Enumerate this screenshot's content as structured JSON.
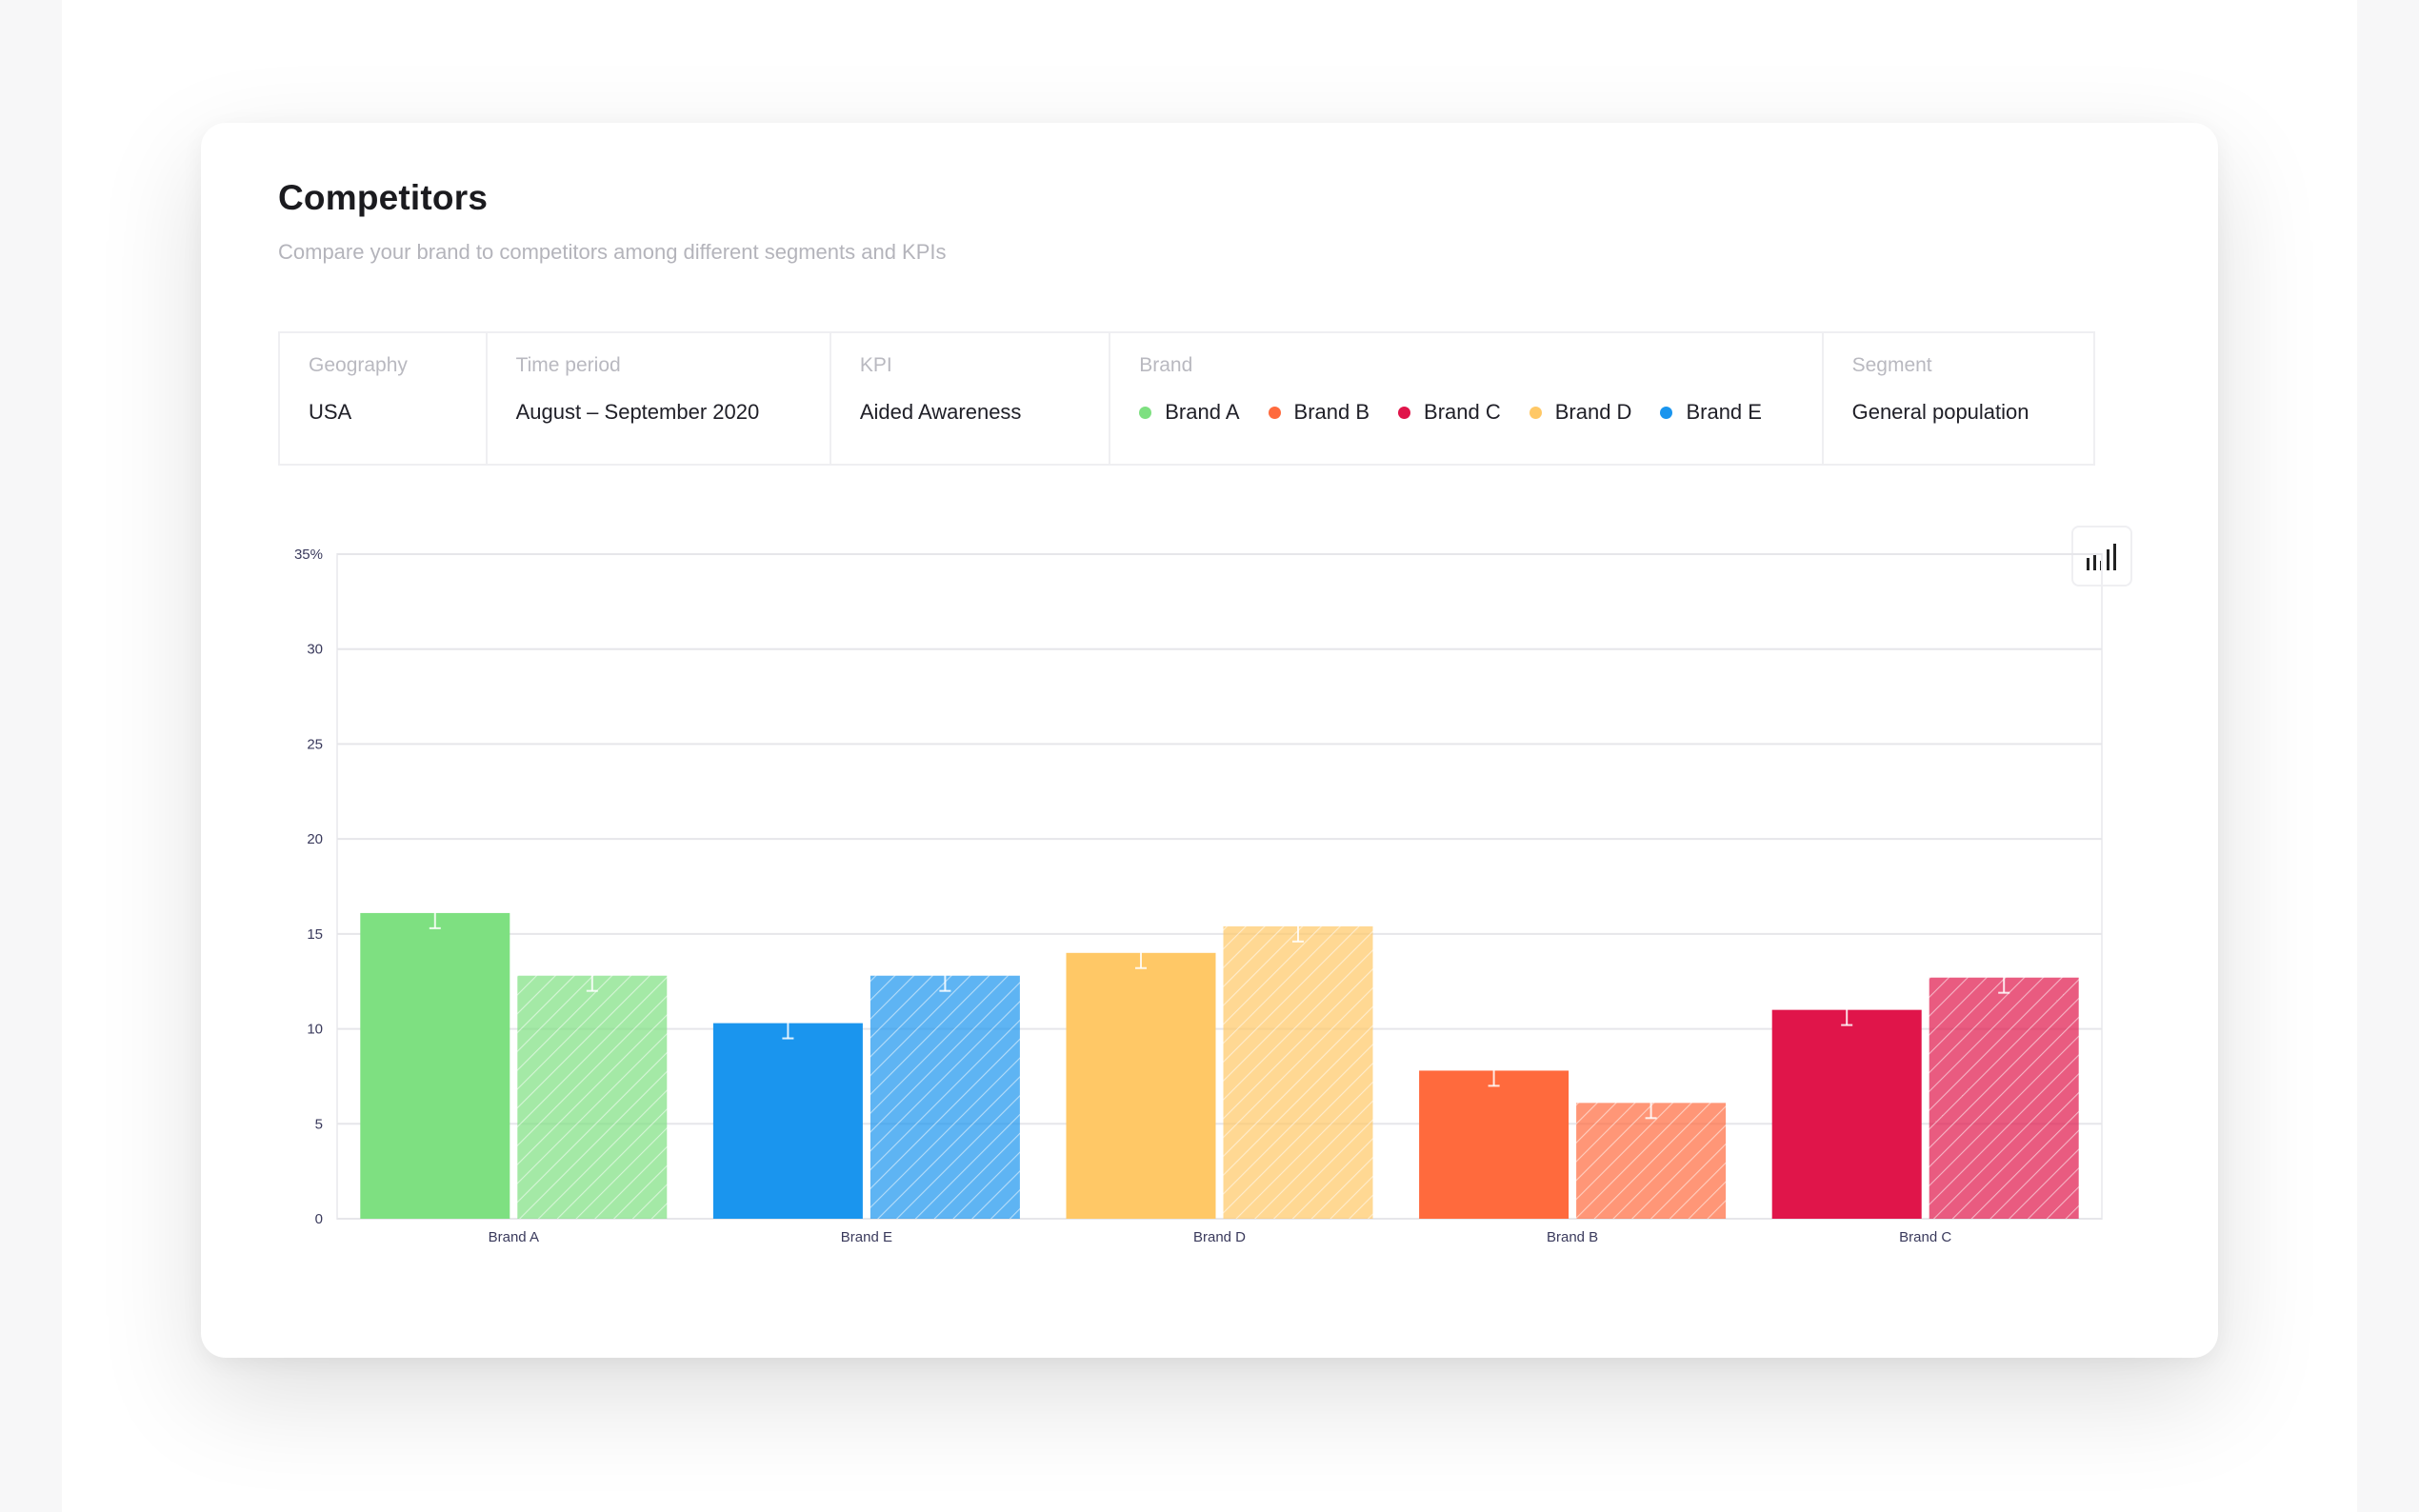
{
  "header": {
    "title": "Competitors",
    "subtitle": "Compare your brand to competitors among different segments and KPIs"
  },
  "filters": {
    "geography": {
      "label": "Geography",
      "value": "USA"
    },
    "time_period": {
      "label": "Time period",
      "value": "August – September 2020"
    },
    "kpi": {
      "label": "KPI",
      "value": "Aided Awareness"
    },
    "brand": {
      "label": "Brand",
      "items": [
        {
          "name": "Brand A",
          "color": "#7ee081"
        },
        {
          "name": "Brand B",
          "color": "#ff6a3d"
        },
        {
          "name": "Brand C",
          "color": "#e0154a"
        },
        {
          "name": "Brand D",
          "color": "#ffc866"
        },
        {
          "name": "Brand E",
          "color": "#1a95ee"
        }
      ]
    },
    "segment": {
      "label": "Segment",
      "value": "General population"
    }
  },
  "toolbar": {
    "chart_type_icon": "bar-chart-icon"
  },
  "chart_data": {
    "type": "bar",
    "categories": [
      "Brand A",
      "Brand E",
      "Brand D",
      "Brand B",
      "Brand C"
    ],
    "colors": [
      "#7ee081",
      "#1a95ee",
      "#ffc866",
      "#ff6a3d",
      "#e0154a"
    ],
    "series": [
      {
        "style": "solid",
        "values": [
          16.1,
          10.3,
          14.0,
          7.8,
          11.0
        ],
        "error": [
          0.8,
          0.8,
          0.8,
          0.8,
          0.8
        ]
      },
      {
        "style": "hatched",
        "values": [
          12.8,
          12.8,
          15.4,
          6.1,
          12.7
        ],
        "error": [
          0.8,
          0.8,
          0.8,
          0.8,
          0.8
        ]
      }
    ],
    "yticks": [
      "0",
      "5",
      "10",
      "15",
      "20",
      "25",
      "30",
      "35%"
    ],
    "ylim": [
      0,
      35
    ],
    "grid": true
  }
}
